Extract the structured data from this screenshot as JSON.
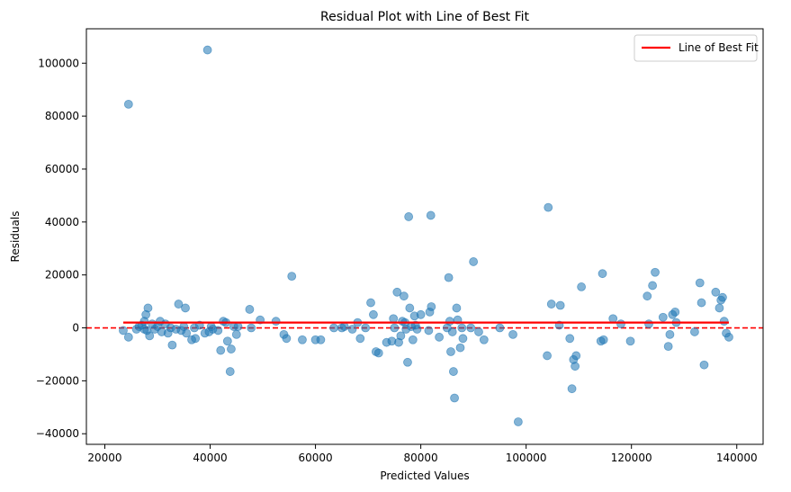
{
  "chart_data": {
    "type": "scatter",
    "title": "Residual Plot with Line of Best Fit",
    "xlabel": "Predicted Values",
    "ylabel": "Residuals",
    "xlim": [
      16500,
      145000
    ],
    "ylim": [
      -44000,
      113000
    ],
    "xticks": [
      20000,
      40000,
      60000,
      80000,
      100000,
      120000,
      140000
    ],
    "xtick_labels": [
      "20000",
      "40000",
      "60000",
      "80000",
      "100000",
      "120000",
      "140000"
    ],
    "yticks": [
      -40000,
      -20000,
      0,
      20000,
      40000,
      60000,
      80000,
      100000
    ],
    "ytick_labels": [
      "−40000",
      "−20000",
      "0",
      "20000",
      "40000",
      "60000",
      "80000",
      "100000"
    ],
    "grid": false,
    "legend": {
      "placement": "top-right",
      "entries": [
        "Line of Best Fit"
      ]
    },
    "colors": {
      "points": "#1f77b4",
      "fit_line": "#ff0000",
      "zero_line": "#ff0000"
    },
    "zero_line": {
      "y": 0,
      "style": "dashed"
    },
    "fit_line": {
      "name": "Line of Best Fit",
      "x": [
        23500,
        138500
      ],
      "y": [
        2000,
        2000
      ]
    },
    "points": [
      {
        "x": 23500,
        "y": -1000
      },
      {
        "x": 24500,
        "y": 84500
      },
      {
        "x": 24500,
        "y": -3500
      },
      {
        "x": 26000,
        "y": -500
      },
      {
        "x": 26500,
        "y": 500
      },
      {
        "x": 27000,
        "y": 1000
      },
      {
        "x": 27500,
        "y": 2500
      },
      {
        "x": 27500,
        "y": -500
      },
      {
        "x": 27800,
        "y": 5000
      },
      {
        "x": 28000,
        "y": -1000
      },
      {
        "x": 28200,
        "y": 7500
      },
      {
        "x": 28500,
        "y": -3000
      },
      {
        "x": 29000,
        "y": 1500
      },
      {
        "x": 29500,
        "y": -500
      },
      {
        "x": 30000,
        "y": 500
      },
      {
        "x": 30500,
        "y": 2500
      },
      {
        "x": 30800,
        "y": -1500
      },
      {
        "x": 31500,
        "y": 1500
      },
      {
        "x": 32000,
        "y": -2000
      },
      {
        "x": 32500,
        "y": 0
      },
      {
        "x": 32800,
        "y": -6500
      },
      {
        "x": 33500,
        "y": -500
      },
      {
        "x": 34000,
        "y": 9000
      },
      {
        "x": 34500,
        "y": -1000
      },
      {
        "x": 35000,
        "y": 500
      },
      {
        "x": 35300,
        "y": 7500
      },
      {
        "x": 35500,
        "y": -2000
      },
      {
        "x": 36500,
        "y": -4500
      },
      {
        "x": 37000,
        "y": 0
      },
      {
        "x": 37200,
        "y": -4000
      },
      {
        "x": 38000,
        "y": 1000
      },
      {
        "x": 39000,
        "y": -2000
      },
      {
        "x": 39500,
        "y": 105000
      },
      {
        "x": 39800,
        "y": -1500
      },
      {
        "x": 40200,
        "y": 500
      },
      {
        "x": 40500,
        "y": -500
      },
      {
        "x": 41500,
        "y": -1000
      },
      {
        "x": 42000,
        "y": -8500
      },
      {
        "x": 42500,
        "y": 2500
      },
      {
        "x": 43000,
        "y": 2000
      },
      {
        "x": 43300,
        "y": -5000
      },
      {
        "x": 43800,
        "y": -16500
      },
      {
        "x": 44000,
        "y": -8000
      },
      {
        "x": 44500,
        "y": 500
      },
      {
        "x": 45000,
        "y": -2500
      },
      {
        "x": 45300,
        "y": 500
      },
      {
        "x": 47500,
        "y": 7000
      },
      {
        "x": 47800,
        "y": 0
      },
      {
        "x": 49500,
        "y": 3000
      },
      {
        "x": 52500,
        "y": 2500
      },
      {
        "x": 54000,
        "y": -2500
      },
      {
        "x": 54500,
        "y": -4000
      },
      {
        "x": 55500,
        "y": 19500
      },
      {
        "x": 57500,
        "y": -4500
      },
      {
        "x": 60000,
        "y": -4500
      },
      {
        "x": 61000,
        "y": -4500
      },
      {
        "x": 63500,
        "y": 0
      },
      {
        "x": 65000,
        "y": 0
      },
      {
        "x": 65500,
        "y": 500
      },
      {
        "x": 67000,
        "y": -500
      },
      {
        "x": 68000,
        "y": 2000
      },
      {
        "x": 68500,
        "y": -4000
      },
      {
        "x": 69500,
        "y": 0
      },
      {
        "x": 70500,
        "y": 9500
      },
      {
        "x": 71000,
        "y": 5000
      },
      {
        "x": 71500,
        "y": -9000
      },
      {
        "x": 72000,
        "y": -9500
      },
      {
        "x": 73500,
        "y": -5500
      },
      {
        "x": 74500,
        "y": -5000
      },
      {
        "x": 74800,
        "y": 3500
      },
      {
        "x": 75000,
        "y": 0
      },
      {
        "x": 75500,
        "y": 13500
      },
      {
        "x": 75800,
        "y": -5500
      },
      {
        "x": 76200,
        "y": -3000
      },
      {
        "x": 76500,
        "y": 2500
      },
      {
        "x": 76800,
        "y": 12000
      },
      {
        "x": 77000,
        "y": 2000
      },
      {
        "x": 77200,
        "y": -500
      },
      {
        "x": 77500,
        "y": -13000
      },
      {
        "x": 77700,
        "y": 42000
      },
      {
        "x": 77900,
        "y": 7500
      },
      {
        "x": 78200,
        "y": 500
      },
      {
        "x": 78500,
        "y": -4500
      },
      {
        "x": 78800,
        "y": 4500
      },
      {
        "x": 79000,
        "y": 1000
      },
      {
        "x": 79300,
        "y": -500
      },
      {
        "x": 80000,
        "y": 5000
      },
      {
        "x": 81500,
        "y": -1000
      },
      {
        "x": 81700,
        "y": 6000
      },
      {
        "x": 81900,
        "y": 42500
      },
      {
        "x": 82000,
        "y": 8000
      },
      {
        "x": 83500,
        "y": -3500
      },
      {
        "x": 85000,
        "y": 0
      },
      {
        "x": 85300,
        "y": 19000
      },
      {
        "x": 85500,
        "y": 2500
      },
      {
        "x": 85700,
        "y": -9000
      },
      {
        "x": 86000,
        "y": -1500
      },
      {
        "x": 86200,
        "y": -16500
      },
      {
        "x": 86400,
        "y": -26500
      },
      {
        "x": 86800,
        "y": 7500
      },
      {
        "x": 87000,
        "y": 3000
      },
      {
        "x": 87500,
        "y": -7500
      },
      {
        "x": 87800,
        "y": 0
      },
      {
        "x": 88000,
        "y": -4000
      },
      {
        "x": 89500,
        "y": 0
      },
      {
        "x": 90000,
        "y": 25000
      },
      {
        "x": 91000,
        "y": -1500
      },
      {
        "x": 92000,
        "y": -4500
      },
      {
        "x": 95000,
        "y": 0
      },
      {
        "x": 97500,
        "y": -2500
      },
      {
        "x": 98500,
        "y": -35500
      },
      {
        "x": 104000,
        "y": -10500
      },
      {
        "x": 104200,
        "y": 45500
      },
      {
        "x": 104800,
        "y": 9000
      },
      {
        "x": 106300,
        "y": 1000
      },
      {
        "x": 106500,
        "y": 8500
      },
      {
        "x": 108300,
        "y": -4000
      },
      {
        "x": 108700,
        "y": -23000
      },
      {
        "x": 109000,
        "y": -12000
      },
      {
        "x": 109300,
        "y": -14500
      },
      {
        "x": 109500,
        "y": -10500
      },
      {
        "x": 110500,
        "y": 15500
      },
      {
        "x": 114200,
        "y": -5000
      },
      {
        "x": 114500,
        "y": 20500
      },
      {
        "x": 114700,
        "y": -4500
      },
      {
        "x": 116500,
        "y": 3500
      },
      {
        "x": 118000,
        "y": 1500
      },
      {
        "x": 119800,
        "y": -5000
      },
      {
        "x": 123000,
        "y": 12000
      },
      {
        "x": 123300,
        "y": 1500
      },
      {
        "x": 124000,
        "y": 16000
      },
      {
        "x": 124500,
        "y": 21000
      },
      {
        "x": 126000,
        "y": 4000
      },
      {
        "x": 127000,
        "y": -7000
      },
      {
        "x": 127300,
        "y": -2500
      },
      {
        "x": 127800,
        "y": 5000
      },
      {
        "x": 128300,
        "y": 6000
      },
      {
        "x": 128500,
        "y": 2000
      },
      {
        "x": 132000,
        "y": -1500
      },
      {
        "x": 133000,
        "y": 17000
      },
      {
        "x": 133300,
        "y": 9500
      },
      {
        "x": 133800,
        "y": -14000
      },
      {
        "x": 136000,
        "y": 13500
      },
      {
        "x": 136700,
        "y": 7500
      },
      {
        "x": 137000,
        "y": 10500
      },
      {
        "x": 137300,
        "y": 11500
      },
      {
        "x": 137600,
        "y": 2500
      },
      {
        "x": 138000,
        "y": -2000
      },
      {
        "x": 138500,
        "y": -3500
      }
    ]
  }
}
